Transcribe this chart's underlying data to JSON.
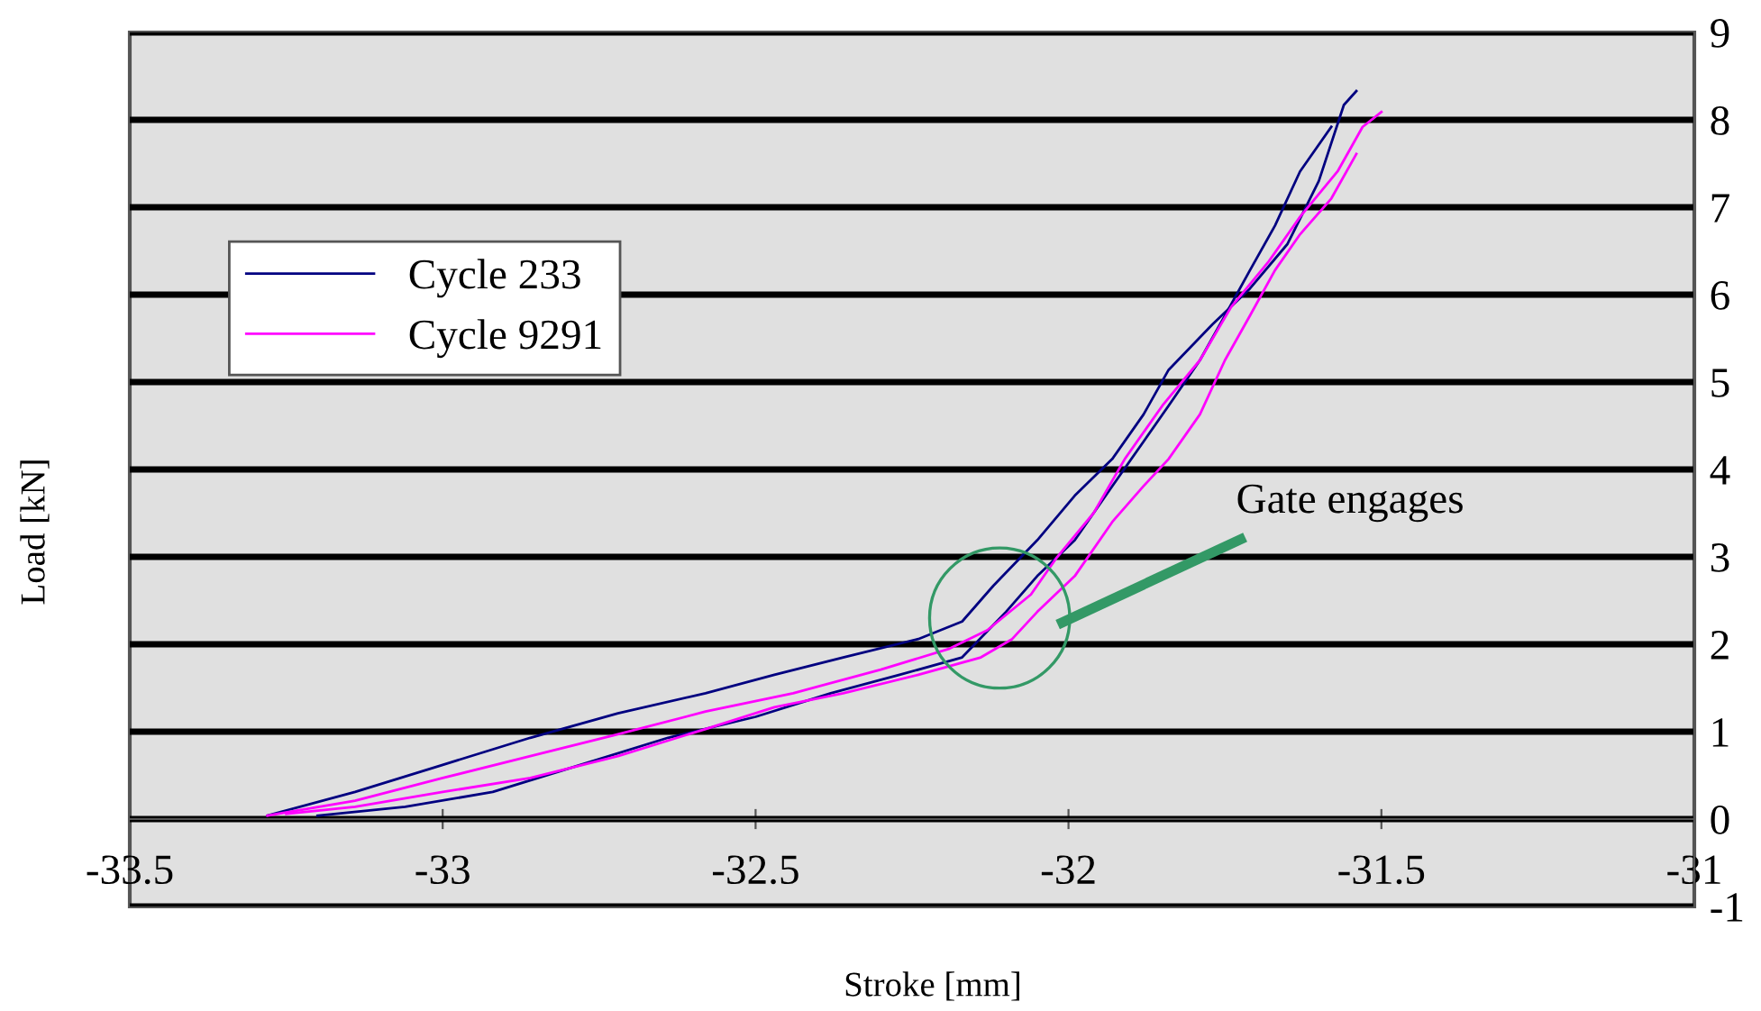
{
  "chart_data": {
    "type": "line",
    "xlabel": "Stroke [mm]",
    "ylabel": "Load [kN]",
    "xlim": [
      -33.5,
      -31
    ],
    "xticks": [
      -33.5,
      -33,
      -32.5,
      -32,
      -31.5,
      -31
    ],
    "ylim": [
      -1,
      9
    ],
    "yticks": [
      -1,
      0,
      1,
      2,
      3,
      4,
      5,
      6,
      7,
      8,
      9
    ],
    "grid": "y",
    "legend": "top left",
    "line_style": "solid",
    "marker": "none",
    "annotations": [
      "Gate engages"
    ],
    "series": [
      {
        "name": "Cycle 233",
        "color": "#000080",
        "x": [
          -33.28,
          -33.14,
          -33.0,
          -32.86,
          -32.72,
          -32.58,
          -32.47,
          -32.36,
          -32.24,
          -32.17,
          -32.12,
          -32.05,
          -31.99,
          -31.93,
          -31.88,
          -31.84,
          -31.77,
          -31.71,
          -31.65,
          -31.6,
          -31.56,
          -31.54
        ],
        "values": [
          0.04,
          0.31,
          0.62,
          0.93,
          1.21,
          1.44,
          1.65,
          1.85,
          2.06,
          2.26,
          2.67,
          3.19,
          3.7,
          4.12,
          4.63,
          5.14,
          5.66,
          6.07,
          6.58,
          7.3,
          8.17,
          8.33
        ]
      },
      {
        "color": "#000080",
        "x": [
          -31.58,
          -31.63,
          -31.67,
          -31.71,
          -31.75,
          -31.79,
          -31.84,
          -31.88,
          -31.93,
          -31.99,
          -32.05,
          -32.1,
          -32.17,
          -32.27,
          -32.38,
          -32.5,
          -32.64,
          -32.78,
          -32.92,
          -33.06,
          -33.2
        ],
        "values": [
          7.92,
          7.41,
          6.79,
          6.28,
          5.76,
          5.25,
          4.73,
          4.32,
          3.81,
          3.19,
          2.78,
          2.37,
          1.85,
          1.65,
          1.44,
          1.17,
          0.93,
          0.62,
          0.31,
          0.14,
          0.04
        ]
      },
      {
        "name": "Cycle 9291",
        "color": "#ff00ff",
        "x": [
          -33.28,
          -33.14,
          -33.0,
          -32.86,
          -32.72,
          -32.58,
          -32.44,
          -32.3,
          -32.19,
          -32.13,
          -32.06,
          -32.02,
          -31.96,
          -31.91,
          -31.85,
          -31.79,
          -31.74,
          -31.68,
          -31.63,
          -31.57,
          -31.53,
          -31.5
        ],
        "values": [
          0.04,
          0.21,
          0.47,
          0.72,
          0.97,
          1.23,
          1.44,
          1.71,
          1.95,
          2.16,
          2.57,
          2.98,
          3.5,
          4.12,
          4.73,
          5.25,
          5.86,
          6.38,
          6.89,
          7.41,
          7.92,
          8.09
        ]
      },
      {
        "color": "#ff00ff",
        "x": [
          -31.54,
          -31.58,
          -31.63,
          -31.67,
          -31.71,
          -31.75,
          -31.79,
          -31.84,
          -31.88,
          -31.93,
          -31.99,
          -32.05,
          -32.09,
          -32.14,
          -32.24,
          -32.36,
          -32.47,
          -32.58,
          -32.72,
          -32.86,
          -33.0,
          -33.14,
          -33.25
        ],
        "values": [
          7.61,
          7.1,
          6.69,
          6.28,
          5.76,
          5.25,
          4.63,
          4.12,
          3.81,
          3.4,
          2.78,
          2.37,
          2.06,
          1.85,
          1.65,
          1.44,
          1.28,
          1.03,
          0.72,
          0.47,
          0.31,
          0.14,
          0.06
        ]
      }
    ]
  }
}
